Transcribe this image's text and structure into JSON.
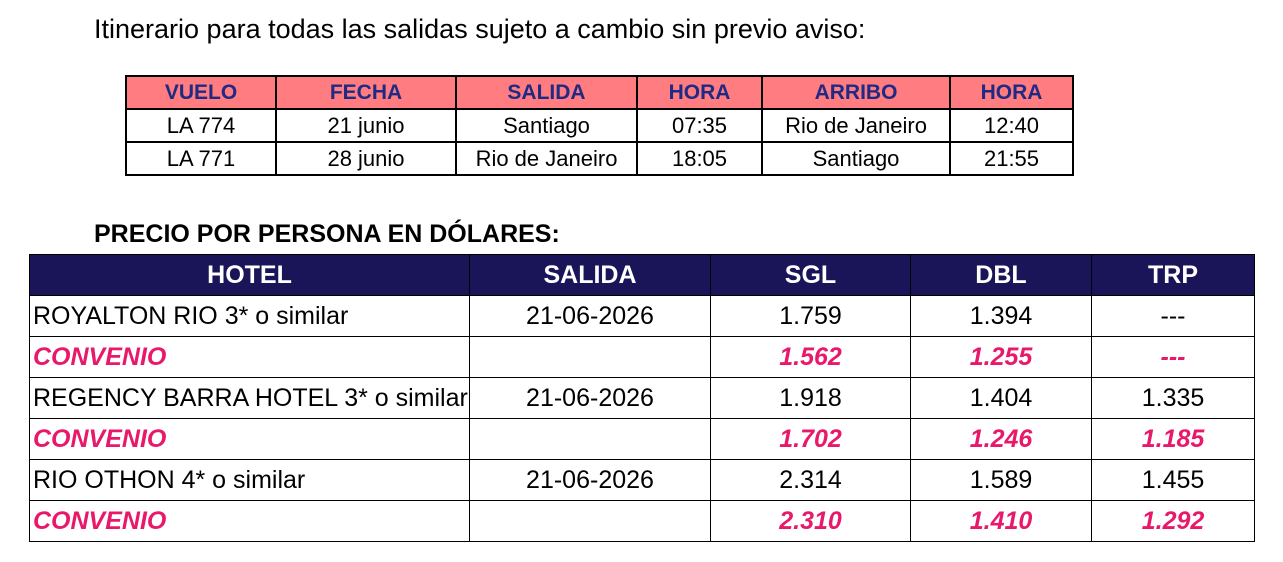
{
  "itinerary_title": "Itinerario para todas las salidas sujeto a cambio sin previo aviso:",
  "flights": {
    "headers": [
      "VUELO",
      "FECHA",
      "SALIDA",
      "HORA",
      "ARRIBO",
      "HORA"
    ],
    "rows": [
      [
        "LA 774",
        "21 junio",
        "Santiago",
        "07:35",
        "Rio de Janeiro",
        "12:40"
      ],
      [
        "LA 771",
        "28 junio",
        "Rio de Janeiro",
        "18:05",
        "Santiago",
        "21:55"
      ]
    ]
  },
  "price_title": "PRECIO POR PERSONA EN DÓLARES:",
  "prices": {
    "headers": [
      "HOTEL",
      "SALIDA",
      "SGL",
      "DBL",
      "TRP"
    ],
    "rows": [
      [
        "ROYALTON RIO 3* o similar",
        "21-06-2026",
        "1.759",
        "1.394",
        "---"
      ],
      [
        "CONVENIO",
        "",
        "1.562",
        "1.255",
        "---"
      ],
      [
        "REGENCY BARRA HOTEL 3* o similar",
        "21-06-2026",
        "1.918",
        "1.404",
        "1.335"
      ],
      [
        "CONVENIO",
        "",
        "1.702",
        "1.246",
        "1.185"
      ],
      [
        "RIO OTHON 4* o similar",
        "21-06-2026",
        "2.314",
        "1.589",
        "1.455"
      ],
      [
        "CONVENIO",
        "",
        "2.310",
        "1.410",
        "1.292"
      ]
    ]
  },
  "colors": {
    "flight_header_bg": "#ff7c80",
    "flight_header_text": "#1f2a84",
    "price_header_bg": "#191558",
    "convenio_text": "#e8186b"
  }
}
